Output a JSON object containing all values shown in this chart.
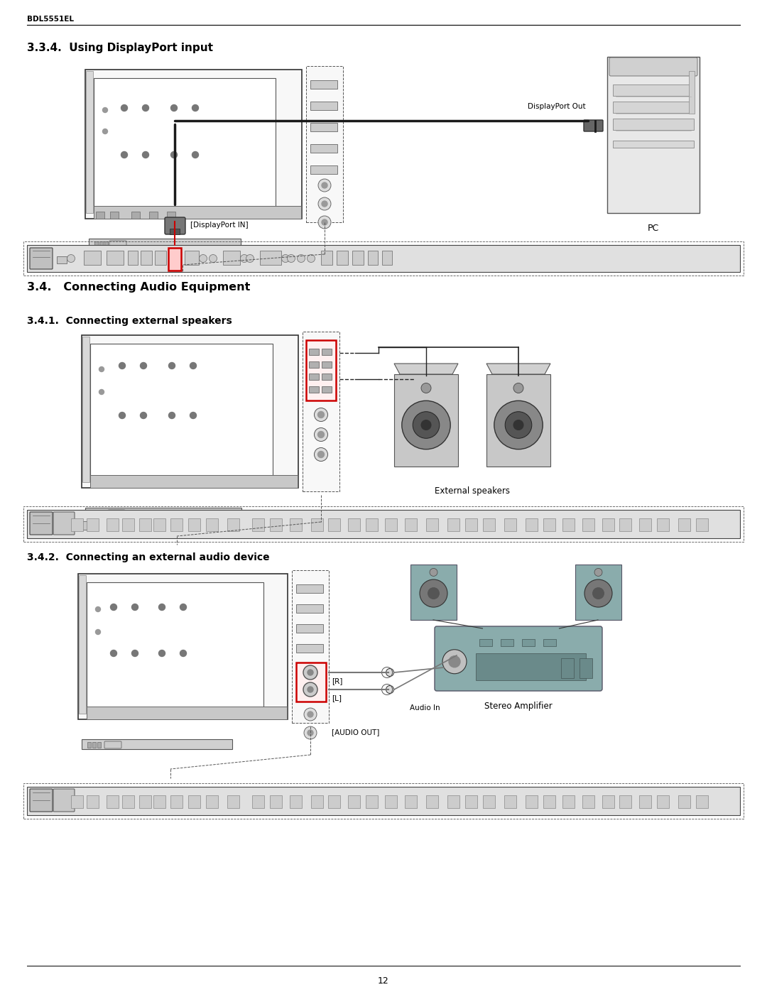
{
  "page_width": 10.8,
  "page_height": 13.97,
  "bg_color": "#ffffff",
  "header_text": "BDL5551EL",
  "footer_text": "12",
  "section_334_title": "3.3.4.  Using DisplayPort input",
  "section_34_title": "3.4.   Connecting Audio Equipment",
  "section_341_title": "3.4.1.  Connecting external speakers",
  "section_342_title": "3.4.2.  Connecting an external audio device",
  "label_displayport_out": "DisplayPort Out",
  "label_pc": "PC",
  "label_displayport_in": "[DisplayPort IN]",
  "label_external_speakers": "External speakers",
  "label_audio_in": "Audio In",
  "label_stereo_amp": "Stereo Amplifier",
  "label_r": "[R]",
  "label_l": "[L]",
  "label_audio_out": "[AUDIO OUT]",
  "black": "#000000",
  "red_color": "#cc0000",
  "mid_gray": "#888888",
  "light_gray": "#dddddd",
  "dark_gray": "#444444",
  "near_white": "#f5f5f5",
  "panel_gray": "#cccccc",
  "strip_gray": "#e5e5e5",
  "teal": "#7a9898"
}
